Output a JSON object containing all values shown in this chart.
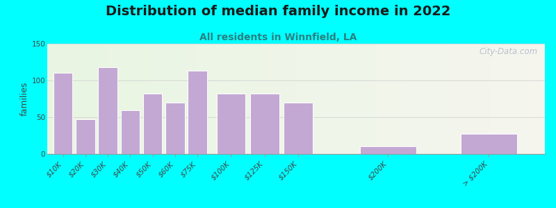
{
  "title": "Distribution of median family income in 2022",
  "subtitle": "All residents in Winnfield, LA",
  "ylabel": "families",
  "background_outer": "#00FFFF",
  "bar_color": "#c4a8d4",
  "categories": [
    "$10K",
    "$20K",
    "$30K",
    "$40K",
    "$50K",
    "$60K",
    "$75K",
    "$100K",
    "$125K",
    "$150K",
    "$200K",
    "> $200K"
  ],
  "values": [
    110,
    47,
    118,
    59,
    82,
    70,
    113,
    82,
    82,
    70,
    10,
    27
  ],
  "ylim": [
    0,
    150
  ],
  "yticks": [
    0,
    50,
    100,
    150
  ],
  "title_fontsize": 14,
  "subtitle_fontsize": 10,
  "ylabel_fontsize": 9,
  "tick_fontsize": 7.5,
  "watermark": "City-Data.com",
  "title_color": "#1a1a1a",
  "subtitle_color": "#2a8080"
}
